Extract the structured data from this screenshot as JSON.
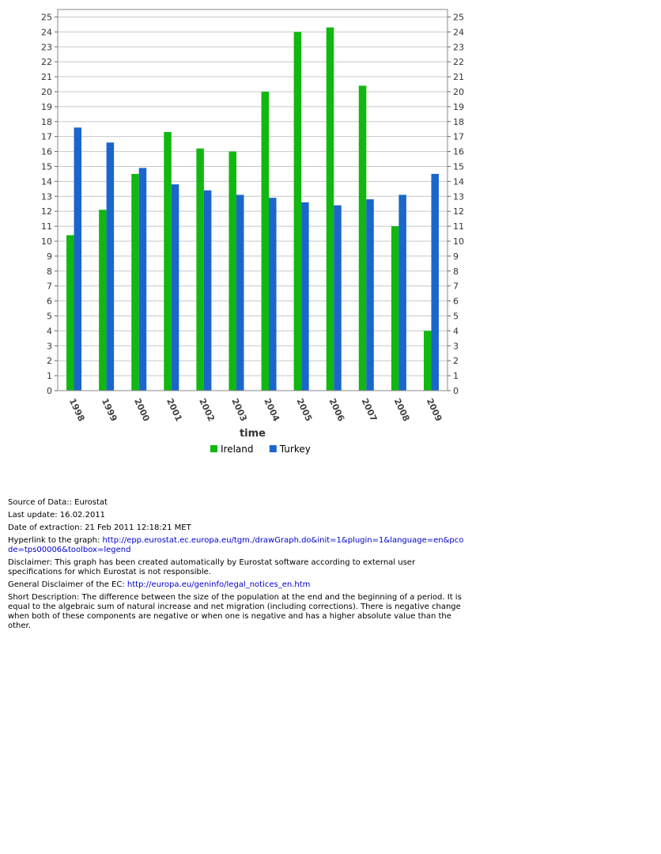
{
  "chart_data": {
    "type": "bar",
    "categories": [
      "1998",
      "1999",
      "2000",
      "2001",
      "2002",
      "2003",
      "2004",
      "2005",
      "2006",
      "2007",
      "2008",
      "2009"
    ],
    "series": [
      {
        "name": "Ireland",
        "color": "#10b810",
        "values": [
          10.4,
          12.1,
          14.5,
          17.3,
          16.2,
          16.0,
          20.0,
          24.0,
          24.3,
          20.4,
          11.0,
          4.0
        ]
      },
      {
        "name": "Turkey",
        "color": "#1a66cc",
        "values": [
          17.6,
          16.6,
          14.9,
          13.8,
          13.4,
          13.1,
          12.9,
          12.6,
          12.4,
          12.8,
          13.1,
          14.5
        ]
      }
    ],
    "title": "",
    "xlabel": "time",
    "ylabel": "",
    "ylim": [
      0,
      25.5
    ],
    "yticks": [
      0,
      1,
      2,
      3,
      4,
      5,
      6,
      7,
      8,
      9,
      10,
      11,
      12,
      13,
      14,
      15,
      16,
      17,
      18,
      19,
      20,
      21,
      22,
      23,
      24,
      25
    ],
    "grid": true,
    "legend_position": "bottom"
  },
  "footer": {
    "source": "Source of Data:: Eurostat",
    "last_update": "Last update: 16.02.2011",
    "extraction": "Date of extraction: 21 Feb 2011 12:18:21 MET",
    "hyperlink_label": "Hyperlink to the graph: ",
    "hyperlink_url": "http://epp.eurostat.ec.europa.eu/tgm./drawGraph.do&init=1&plugin=1&language=en&pcode=tps00006&toolbox=legend",
    "disclaimer": "Disclaimer: This graph has been created automatically by Eurostat software according to external user specifications for which Eurostat is not responsible.",
    "general_label": "General Disclaimer of the EC: ",
    "general_url": "http://europa.eu/geninfo/legal_notices_en.htm",
    "short_description": "Short Description: The difference between the size of the population at the end and the beginning of a period. It is equal to the algebraic sum of natural increase and net migration (including corrections). There is negative change when both of these components are negative or when one is negative and has a higher absolute value than the other."
  }
}
